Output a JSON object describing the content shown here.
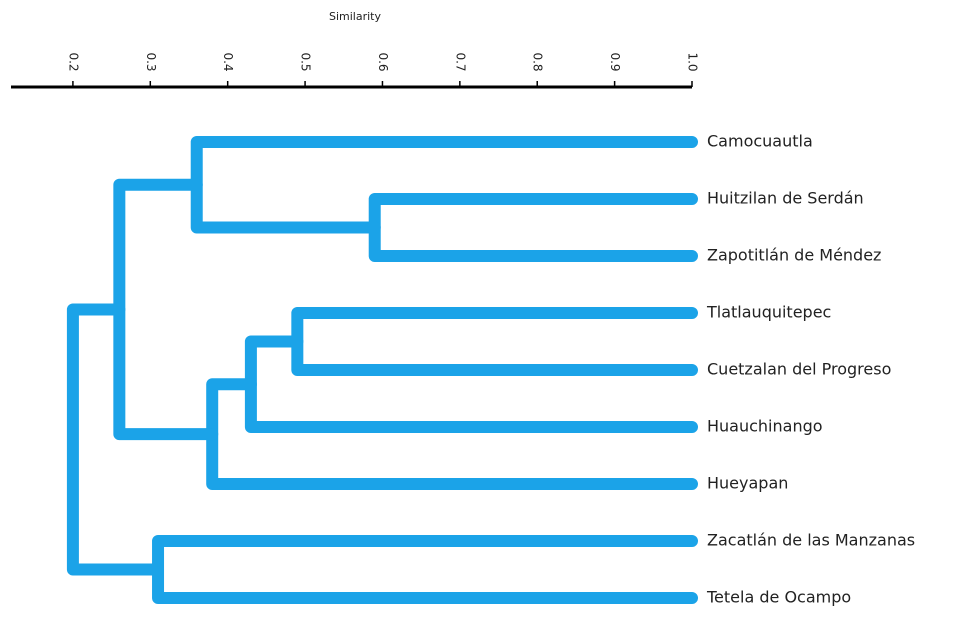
{
  "chart_data": {
    "type": "dendrogram",
    "xlabel": "Similarity",
    "xlim": [
      0.12,
      1.0
    ],
    "xticks": [
      0.2,
      0.3,
      0.4,
      0.5,
      0.6,
      0.7,
      0.8,
      0.9,
      {
        "value": 1,
        "label": "1.0"
      }
    ],
    "color": "#1ba3e8",
    "tree": {
      "similarity": 0.2,
      "children": [
        {
          "similarity": 0.26,
          "children": [
            {
              "similarity": 0.36,
              "children": [
                {
                  "label": "Camocuautla"
                },
                {
                  "similarity": 0.59,
                  "children": [
                    {
                      "label": "Huitzilan de Serdán"
                    },
                    {
                      "label": "Zapotitlán de Méndez"
                    }
                  ]
                }
              ]
            },
            {
              "similarity": 0.38,
              "children": [
                {
                  "similarity": 0.43,
                  "children": [
                    {
                      "similarity": 0.49,
                      "children": [
                        {
                          "label": "Tlatlauquitepec"
                        },
                        {
                          "label": "Cuetzalan del Progreso"
                        }
                      ]
                    },
                    {
                      "label": "Huauchinango"
                    }
                  ]
                },
                {
                  "label": "Hueyapan"
                }
              ]
            }
          ]
        },
        {
          "similarity": 0.31,
          "children": [
            {
              "label": "Zacatlán de las Manzanas"
            },
            {
              "label": "Tetela de Ocampo"
            }
          ]
        }
      ]
    }
  }
}
